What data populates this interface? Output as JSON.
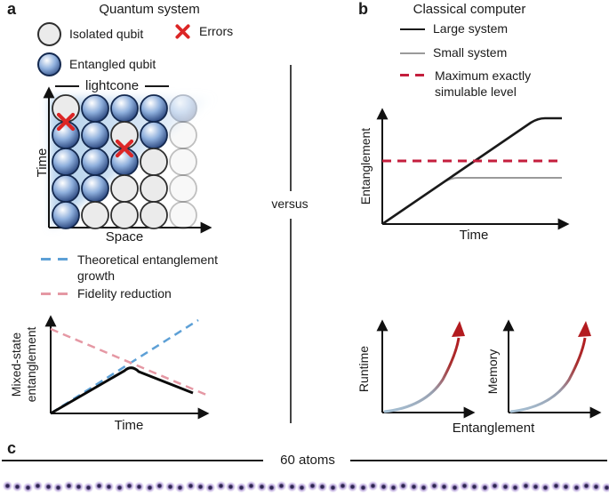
{
  "panel_a": {
    "label": "a",
    "title": "Quantum system",
    "legend_isolated": "Isolated qubit",
    "legend_errors": "Errors",
    "legend_entangled": "Entangled qubit",
    "lightcone_label": "lightcone",
    "grid": {
      "y_axis": "Time",
      "x_axis": "Space",
      "cells": [
        [
          "iso",
          "ent",
          "ent",
          "ent",
          "ent-f"
        ],
        [
          "ent",
          "ent",
          "iso",
          "ent",
          "iso-f"
        ],
        [
          "ent",
          "ent",
          "ent",
          "iso",
          "iso-f"
        ],
        [
          "ent",
          "ent",
          "iso",
          "iso",
          "iso-f"
        ],
        [
          "ent",
          "iso",
          "iso",
          "iso",
          "iso-f"
        ]
      ],
      "errors": [
        {
          "row": 0,
          "col": 0
        },
        {
          "row": 1,
          "col": 2
        }
      ]
    },
    "plot": {
      "legend_theoretical": "Theoretical entanglement growth",
      "legend_fidelity": "Fidelity reduction",
      "y_axis": "Mixed-state entanglement",
      "x_axis": "Time",
      "curves": [
        "theoretical entanglement growth (dashed blue, rising)",
        "fidelity reduction (dashed pink, falling)",
        "mixed-state entanglement (solid black, rises then falls)"
      ]
    }
  },
  "divider_label": "versus",
  "panel_b": {
    "label": "b",
    "title": "Classical computer",
    "legend_large": "Large system",
    "legend_small": "Small system",
    "legend_max": "Maximum exactly simulable level",
    "top_plot": {
      "y_axis": "Entanglement",
      "x_axis": "Time",
      "curves": [
        "large system (black, rises then plateaus high)",
        "small system (gray, rises then plateaus below maximum)",
        "maximum exactly simulable level (red dashed horizontal)"
      ]
    },
    "runtime_plot": {
      "y_axis": "Runtime",
      "curve": "exponential growth, blue to red arrow"
    },
    "memory_plot": {
      "y_axis": "Memory",
      "curve": "exponential growth, blue to red arrow"
    },
    "bottom_x_axis": "Entanglement"
  },
  "panel_c": {
    "label": "c",
    "atoms_label": "60 atoms",
    "atom_count": 60
  },
  "colors": {
    "entangled_dark": "#16316b",
    "isolated_fill": "#ebebeb",
    "error_red": "#dc2626",
    "lightcone_bg": "#aecdea",
    "theory_blue": "#5da0d6",
    "fidelity_pink": "#e598a4",
    "max_level_red": "#c41e3c",
    "large_black": "#1a1a1a",
    "small_gray": "#9a9a9a",
    "curve_blue": "#a8c4d8",
    "curve_red": "#b31b1f",
    "atom_core": "#2d2550",
    "atom_halo": "#c9b8e8"
  }
}
